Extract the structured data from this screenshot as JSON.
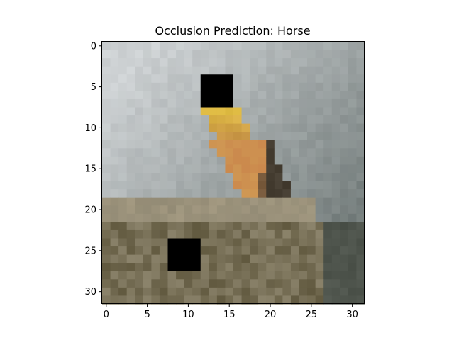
{
  "figure": {
    "title": "Occlusion Prediction: Horse"
  },
  "image": {
    "description": "pixelated 32x32 image",
    "grid_size": 32,
    "occlusions": [
      {
        "row_start": 4,
        "row_end": 7,
        "col_start": 12,
        "col_end": 15
      },
      {
        "row_start": 24,
        "row_end": 27,
        "col_start": 8,
        "col_end": 11
      }
    ]
  },
  "axes": {
    "x_ticks": [
      "0",
      "5",
      "10",
      "15",
      "20",
      "25",
      "30"
    ],
    "y_ticks": [
      "0",
      "5",
      "10",
      "15",
      "20",
      "25",
      "30"
    ]
  }
}
